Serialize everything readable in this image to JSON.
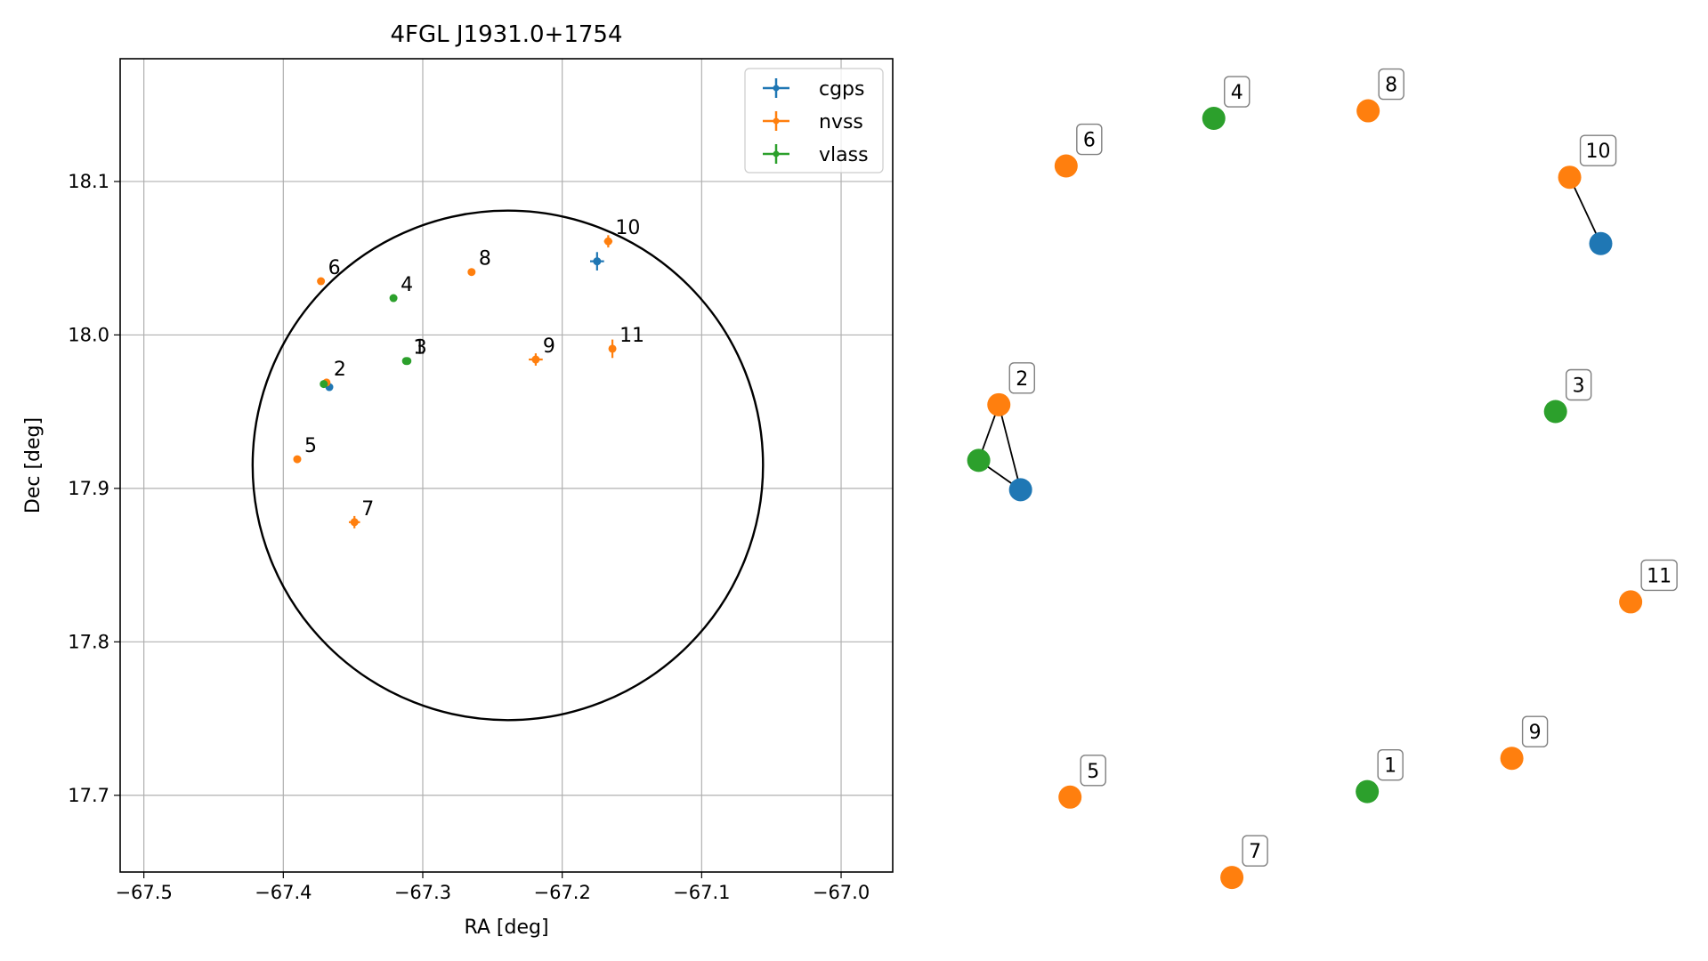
{
  "chart_data": [
    {
      "type": "scatter",
      "title": "4FGL J1931.0+1754",
      "xlabel": "RA [deg]",
      "ylabel": "Dec [deg]",
      "xlim": [
        -67.517,
        -66.963
      ],
      "ylim": [
        17.65,
        18.18
      ],
      "xticks": [
        -67.5,
        -67.4,
        -67.3,
        -67.2,
        -67.1,
        -67.0
      ],
      "xtick_labels": [
        "−67.5",
        "−67.4",
        "−67.3",
        "−67.2",
        "−67.1",
        "−67.0"
      ],
      "yticks": [
        17.7,
        17.8,
        17.9,
        18.0,
        18.1
      ],
      "ytick_labels": [
        "17.7",
        "17.8",
        "17.9",
        "18.0",
        "18.1"
      ],
      "grid": true,
      "legend": {
        "position": "top-right",
        "entries": [
          "cgps",
          "nvss",
          "vlass"
        ]
      },
      "colors": {
        "cgps": "#1f77b4",
        "nvss": "#ff7f0e",
        "vlass": "#2ca02c"
      },
      "circle": {
        "center": [
          -67.239,
          17.915
        ],
        "radius_ra": 0.183,
        "radius_dec": 0.166
      },
      "series": [
        {
          "name": "cgps",
          "points": [
            {
              "label": "",
              "x": -67.175,
              "y": 18.048,
              "xerr": 0.005,
              "yerr": 0.006
            },
            {
              "label": "",
              "x": -67.367,
              "y": 17.966,
              "xerr": 0.0,
              "yerr": 0.0
            }
          ]
        },
        {
          "name": "nvss",
          "points": [
            {
              "label": "2",
              "x": -67.369,
              "y": 17.969,
              "xerr": 0.0,
              "yerr": 0.0
            },
            {
              "label": "5",
              "x": -67.39,
              "y": 17.919,
              "xerr": 0.0,
              "yerr": 0.0
            },
            {
              "label": "6",
              "x": -67.373,
              "y": 18.035,
              "xerr": 0.0,
              "yerr": 0.0
            },
            {
              "label": "7",
              "x": -67.349,
              "y": 17.878,
              "xerr": 0.004,
              "yerr": 0.004
            },
            {
              "label": "8",
              "x": -67.265,
              "y": 18.041,
              "xerr": 0.0,
              "yerr": 0.0
            },
            {
              "label": "9",
              "x": -67.219,
              "y": 17.984,
              "xerr": 0.005,
              "yerr": 0.004
            },
            {
              "label": "10",
              "x": -67.167,
              "y": 18.061,
              "xerr": 0.003,
              "yerr": 0.004
            },
            {
              "label": "11",
              "x": -67.164,
              "y": 17.991,
              "xerr": 0.0,
              "yerr": 0.006
            }
          ]
        },
        {
          "name": "vlass",
          "points": [
            {
              "label": "1",
              "x": -67.312,
              "y": 17.983,
              "xerr": 0.0,
              "yerr": 0.0
            },
            {
              "label": "",
              "x": -67.371,
              "y": 17.968,
              "xerr": 0.0,
              "yerr": 0.0
            },
            {
              "label": "3",
              "x": -67.311,
              "y": 17.983,
              "xerr": 0.0,
              "yerr": 0.0
            },
            {
              "label": "4",
              "x": -67.321,
              "y": 18.024,
              "xerr": 0.0,
              "yerr": 0.0
            }
          ]
        }
      ]
    },
    {
      "type": "network",
      "nodes": [
        {
          "label": "4",
          "series": "vlass",
          "x": 0.2593,
          "y": 0.1042
        },
        {
          "label": "8",
          "series": "nvss",
          "x": 0.4996,
          "y": 0.0947
        },
        {
          "label": "6",
          "series": "nvss",
          "x": 0.0294,
          "y": 0.1641
        },
        {
          "label": "10",
          "series": "nvss",
          "x": 0.8133,
          "y": 0.1783
        },
        {
          "label": "",
          "series": "cgps",
          "x": 0.8617,
          "y": 0.2618
        },
        {
          "label": "2",
          "series": "nvss",
          "x": -0.0753,
          "y": 0.4646
        },
        {
          "label": "",
          "series": "vlass",
          "x": -0.1067,
          "y": 0.5347
        },
        {
          "label": "",
          "series": "cgps",
          "x": -0.0415,
          "y": 0.5716
        },
        {
          "label": "3",
          "series": "vlass",
          "x": 0.7913,
          "y": 0.4732
        },
        {
          "label": "11",
          "series": "nvss",
          "x": 0.9083,
          "y": 0.7128
        },
        {
          "label": "9",
          "series": "nvss",
          "x": 0.7233,
          "y": 0.9097
        },
        {
          "label": "5",
          "series": "nvss",
          "x": 0.0355,
          "y": 0.9585
        },
        {
          "label": "1",
          "series": "vlass",
          "x": 0.4982,
          "y": 0.9516
        },
        {
          "label": "7",
          "series": "nvss",
          "x": 0.2875,
          "y": 1.0597
        }
      ],
      "edges": [
        [
          "10",
          "cgps-a"
        ],
        [
          "2",
          "vlass-b"
        ],
        [
          "2",
          "cgps-b"
        ],
        [
          "vlass-b",
          "cgps-b"
        ]
      ]
    }
  ]
}
